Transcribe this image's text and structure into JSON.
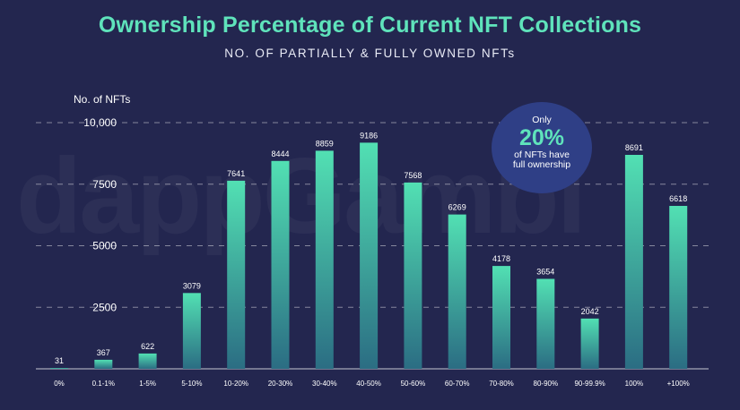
{
  "chart_data": {
    "type": "bar",
    "title": "Ownership Percentage of Current NFT Collections",
    "subtitle": "NO. OF PARTIALLY & FULLY OWNED NFTs",
    "ylabel": "No. of NFTs",
    "xlabel": "",
    "ylim": [
      0,
      10000
    ],
    "yticks": [
      2500,
      5000,
      7500,
      10000
    ],
    "ytick_labels": [
      "2500",
      "5000",
      "7500",
      "10,000"
    ],
    "categories": [
      "0%",
      "0.1-1%",
      "1-5%",
      "5-10%",
      "10-20%",
      "20-30%",
      "30-40%",
      "40-50%",
      "50-60%",
      "60-70%",
      "70-80%",
      "80-90%",
      "90-99.9%",
      "100%",
      "+100%"
    ],
    "values": [
      31,
      367,
      622,
      3079,
      7641,
      8444,
      8859,
      9186,
      7568,
      6269,
      4178,
      3654,
      2042,
      8691,
      6618
    ],
    "value_labels": [
      "31",
      "367",
      "622",
      "3079",
      "7641",
      "8444",
      "8859",
      "9186",
      "7568",
      "6269",
      "4178",
      "3654",
      "2042",
      "8691",
      "6618"
    ],
    "grid": "dashed horizontal",
    "legend": "none",
    "colors": {
      "bar_top": "#52e0b3",
      "bar_bottom": "#2b6d83",
      "title": "#5fe3bb",
      "background": "#23264f",
      "callout": "#2f3f86"
    }
  },
  "callout": {
    "pre": "Only",
    "big": "20%",
    "post": "of NFTs have full ownership"
  },
  "watermark": "dappGambl"
}
